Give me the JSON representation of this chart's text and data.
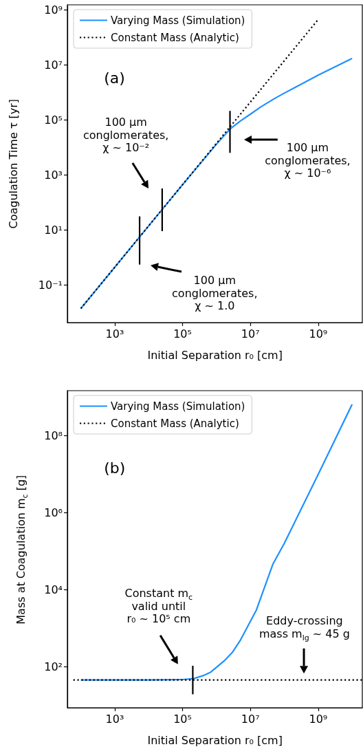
{
  "chart_data": [
    {
      "type": "line",
      "xlabel": "Initial Separation r₀ [cm]",
      "ylabel": "Coagulation Time τ [yr]",
      "log": "xy",
      "legend": "top left",
      "marker": "none",
      "xlim": [
        40,
        20000000000
      ],
      "xticks": [
        {
          "value": 1000,
          "label": "10³"
        },
        {
          "value": 100000,
          "label": "10⁵"
        },
        {
          "value": 10000000,
          "label": "10⁷"
        },
        {
          "value": 1000000000,
          "label": "10⁹"
        }
      ],
      "ylim": [
        0.0043,
        1500000000
      ],
      "yticks": [
        {
          "value": 0.1,
          "label": "10⁻¹"
        },
        {
          "value": 10,
          "label": "10¹"
        },
        {
          "value": 1000,
          "label": "10³"
        },
        {
          "value": 100000,
          "label": "10⁵"
        },
        {
          "value": 10000000,
          "label": "10⁷"
        },
        {
          "value": 1000000000,
          "label": "10⁹"
        }
      ],
      "series": [
        {
          "name": "Varying Mass (Simulation)",
          "color": "#1e90ff",
          "line_style": "solid",
          "x": [
            100,
            1000,
            10000,
            100000,
            1000000,
            2500000,
            5000000,
            10000000,
            20000000,
            50000000,
            100000000,
            220000000,
            1000000000,
            10000000000
          ],
          "values": [
            0.014,
            0.44,
            14,
            440,
            13000,
            46000,
            89000,
            160000,
            290000,
            580000,
            930000,
            1550000,
            4200000,
            17000000
          ]
        },
        {
          "name": "Constant Mass (Analytic)",
          "color": "#000000",
          "line_style": "dotted",
          "x": [
            100,
            1000000000
          ],
          "values": [
            0.014,
            440000000
          ]
        },
        {
          "color": "#000000",
          "line_style": "solid",
          "x": [
            5400,
            5400
          ],
          "values": [
            0.55,
            31
          ]
        },
        {
          "color": "#000000",
          "line_style": "solid",
          "x": [
            25000,
            25000
          ],
          "values": [
            9,
            320
          ]
        },
        {
          "color": "#000000",
          "line_style": "solid",
          "x": [
            2500000,
            2500000
          ],
          "values": [
            6300,
            210000
          ]
        }
      ],
      "annotations": [
        "(a)",
        "100 μm\nconglomerates,\nχ ~ 10⁻²",
        "100 μm\nconglomerates,\nχ ~ 10⁻⁶",
        "100 μm\nconglomerates,\nχ ~ 1.0"
      ]
    },
    {
      "type": "line",
      "xlabel": "Initial Separation r₀ [cm]",
      "ylabel": "Mass at Coagulation m$_{c}$ [g]",
      "log": "xy",
      "legend": "top left",
      "marker": "none",
      "xlim": [
        40,
        20000000000
      ],
      "xticks": [
        {
          "value": 1000,
          "label": "10³"
        },
        {
          "value": 100000,
          "label": "10⁵"
        },
        {
          "value": 10000000,
          "label": "10⁷"
        },
        {
          "value": 1000000000,
          "label": "10⁹"
        }
      ],
      "ylim": [
        8.5,
        1500000000
      ],
      "yticks": [
        {
          "value": 100,
          "label": "10²"
        },
        {
          "value": 10000,
          "label": "10⁴"
        },
        {
          "value": 1000000,
          "label": "10⁶"
        },
        {
          "value": 100000000,
          "label": "10⁸"
        }
      ],
      "series": [
        {
          "name": "Varying Mass (Simulation)",
          "color": "#1e90ff",
          "line_style": "solid",
          "x": [
            100,
            1000,
            10000,
            100000,
            200000,
            400000,
            680000,
            1700000,
            3000000,
            5100000,
            7500000,
            15000000,
            46000000,
            100000000,
            1000000000,
            10000000000
          ],
          "values": [
            45,
            45,
            45,
            46,
            48,
            58,
            72,
            142,
            240,
            490,
            930,
            2950,
            46000,
            160000,
            10000000,
            660000000
          ]
        },
        {
          "name": "Constant Mass (Analytic)",
          "color": "#000000",
          "line_style": "dotted",
          "x": [
            60,
            20000000000
          ],
          "values": [
            45,
            45
          ]
        },
        {
          "color": "#000000",
          "line_style": "solid",
          "x": [
            200000,
            200000
          ],
          "values": [
            19,
            105
          ]
        }
      ],
      "annotations": [
        "(b)",
        "Constant m$_{c}$\nvalid until\nr₀ ~ 10⁵ cm",
        "Eddy-crossing\nmass m$_{lg}$ ~ 45 g"
      ]
    }
  ]
}
